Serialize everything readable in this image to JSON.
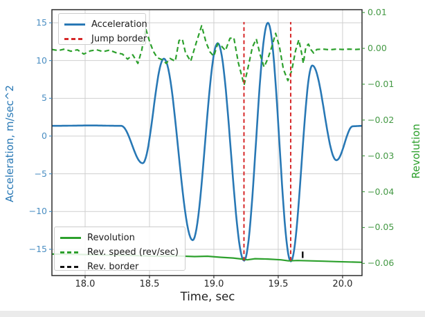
{
  "figure": {
    "background": "#ffffff",
    "window_strip_color": "#ebebeb"
  },
  "axes": {
    "x": {
      "label": "Time, sec",
      "min": 17.742,
      "max": 20.151,
      "ticks": [
        18.0,
        18.5,
        19.0,
        19.5,
        20.0
      ],
      "tick_labels": [
        "18.0",
        "18.5",
        "19.0",
        "19.5",
        "20.0"
      ],
      "tick_color": "#262626"
    },
    "y_left": {
      "label": "Acceleration, m/sec^2",
      "min": -18.48,
      "max": 16.74,
      "ticks": [
        15,
        10,
        5,
        0,
        -5,
        -10,
        -15
      ],
      "tick_labels": [
        "15",
        "10",
        "5",
        "0",
        "−5",
        "−10",
        "−15"
      ],
      "color": "#2878b5",
      "tick_color": "#4a8ec2"
    },
    "y_right": {
      "label": "Revolution",
      "min": -0.0634,
      "max": 0.0108,
      "ticks": [
        0.01,
        0.0,
        -0.01,
        -0.02,
        -0.03,
        -0.04,
        -0.05,
        -0.06
      ],
      "tick_labels": [
        "0.01",
        "0.00",
        "−0.01",
        "−0.02",
        "−0.03",
        "−0.04",
        "−0.05",
        "−0.06"
      ],
      "color": "#2ca02c",
      "tick_color": "#449944"
    },
    "grid": {
      "on": true,
      "color": "#cfcfcf"
    }
  },
  "legend_top": {
    "items": [
      {
        "label": "Acceleration",
        "color": "#2878b5",
        "style": "solid"
      },
      {
        "label": "Jump border",
        "color": "#d62728",
        "style": "dashed"
      }
    ]
  },
  "legend_bottom": {
    "items": [
      {
        "label": "Revolution",
        "color": "#2ca02c",
        "style": "solid"
      },
      {
        "label": "Rev. speed (rev/sec)",
        "color": "#2ca02c",
        "style": "dashed"
      },
      {
        "label": "Rev. border",
        "color": "#111111",
        "style": "dashed"
      }
    ]
  },
  "chart_data": {
    "type": "line",
    "xlabel": "Time, sec",
    "ylabel_left": "Acceleration, m/sec^2",
    "ylabel_right": "Revolution",
    "xlim": [
      17.742,
      20.151
    ],
    "ylim_left": [
      -18.48,
      16.74
    ],
    "ylim_right": [
      -0.0634,
      0.0108
    ],
    "series": [
      {
        "name": "Acceleration",
        "axis": "left",
        "kind": "smooth-line",
        "color": "#2878b5",
        "width": 2.6,
        "style": "solid",
        "points": [
          [
            17.742,
            1.35
          ],
          [
            18.05,
            1.4
          ],
          [
            18.28,
            1.35
          ],
          [
            18.447,
            -3.6
          ],
          [
            18.612,
            10.25
          ],
          [
            18.835,
            -13.8
          ],
          [
            19.03,
            12.3
          ],
          [
            19.235,
            -16.5
          ],
          [
            19.42,
            15.0
          ],
          [
            19.598,
            -16.6
          ],
          [
            19.765,
            9.35
          ],
          [
            19.952,
            -3.2
          ],
          [
            20.08,
            1.3
          ],
          [
            20.151,
            1.35
          ]
        ]
      },
      {
        "name": "Rev. speed (rev/sec)",
        "axis": "right",
        "kind": "line",
        "color": "#2ca02c",
        "width": 2.2,
        "style": "dashed",
        "points": [
          [
            17.742,
            -0.0003
          ],
          [
            17.79,
            -0.0006
          ],
          [
            17.84,
            -0.0002
          ],
          [
            17.89,
            -0.0008
          ],
          [
            17.94,
            -0.0004
          ],
          [
            17.99,
            -0.0016
          ],
          [
            18.04,
            -0.0007
          ],
          [
            18.09,
            -0.0004
          ],
          [
            18.14,
            -0.0009
          ],
          [
            18.19,
            -0.0005
          ],
          [
            18.24,
            -0.0012
          ],
          [
            18.29,
            -0.0016
          ],
          [
            18.33,
            -0.003
          ],
          [
            18.37,
            -0.0018
          ],
          [
            18.41,
            -0.0042
          ],
          [
            18.44,
            -0.0005
          ],
          [
            18.47,
            0.0056
          ],
          [
            18.5,
            0.002
          ],
          [
            18.53,
            -0.0008
          ],
          [
            18.56,
            -0.0026
          ],
          [
            18.6,
            -0.0032
          ],
          [
            18.63,
            -0.0042
          ],
          [
            18.66,
            -0.0028
          ],
          [
            18.7,
            -0.0036
          ],
          [
            18.73,
            0.0022
          ],
          [
            18.755,
            0.0026
          ],
          [
            18.78,
            -0.0012
          ],
          [
            18.82,
            -0.0036
          ],
          [
            18.86,
            0.0012
          ],
          [
            18.905,
            0.0063
          ],
          [
            18.94,
            0.0016
          ],
          [
            18.97,
            -0.001
          ],
          [
            19.0,
            -0.0022
          ],
          [
            19.03,
            0.0013
          ],
          [
            19.06,
            0.0006
          ],
          [
            19.09,
            -0.0006
          ],
          [
            19.125,
            0.0028
          ],
          [
            19.155,
            0.003
          ],
          [
            19.19,
            -0.004
          ],
          [
            19.235,
            -0.0102
          ],
          [
            19.27,
            -0.0046
          ],
          [
            19.3,
            0.0004
          ],
          [
            19.33,
            0.0026
          ],
          [
            19.36,
            -0.0018
          ],
          [
            19.39,
            -0.0052
          ],
          [
            19.42,
            -0.0028
          ],
          [
            19.45,
            0.0004
          ],
          [
            19.48,
            0.0042
          ],
          [
            19.51,
            0.0004
          ],
          [
            19.54,
            -0.0058
          ],
          [
            19.575,
            -0.009
          ],
          [
            19.605,
            -0.0062
          ],
          [
            19.635,
            -0.0006
          ],
          [
            19.66,
            0.0024
          ],
          [
            19.68,
            -0.001
          ],
          [
            19.695,
            -0.0042
          ],
          [
            19.715,
            0.0004
          ],
          [
            19.735,
            0.0012
          ],
          [
            19.755,
            -0.0004
          ],
          [
            19.775,
            -0.0013
          ],
          [
            19.8,
            -0.0003
          ],
          [
            19.85,
            -0.0002
          ],
          [
            19.9,
            -0.0004
          ],
          [
            19.95,
            -0.0002
          ],
          [
            20.0,
            -0.0003
          ],
          [
            20.05,
            -0.0002
          ],
          [
            20.1,
            -0.0003
          ],
          [
            20.151,
            -0.0002
          ]
        ]
      },
      {
        "name": "Revolution",
        "axis": "right",
        "kind": "line",
        "color": "#2ca02c",
        "width": 2.2,
        "style": "solid",
        "points": [
          [
            17.742,
            -0.0574
          ],
          [
            17.95,
            -0.0575
          ],
          [
            18.15,
            -0.0577
          ],
          [
            18.35,
            -0.0578
          ],
          [
            18.55,
            -0.058
          ],
          [
            18.7,
            -0.0579
          ],
          [
            18.85,
            -0.0581
          ],
          [
            18.95,
            -0.058
          ],
          [
            19.05,
            -0.0583
          ],
          [
            19.15,
            -0.0585
          ],
          [
            19.22,
            -0.0588
          ],
          [
            19.26,
            -0.059
          ],
          [
            19.32,
            -0.0587
          ],
          [
            19.42,
            -0.0588
          ],
          [
            19.52,
            -0.059
          ],
          [
            19.58,
            -0.0593
          ],
          [
            19.65,
            -0.0592
          ],
          [
            19.75,
            -0.0593
          ],
          [
            19.85,
            -0.0594
          ],
          [
            19.95,
            -0.0595
          ],
          [
            20.05,
            -0.0596
          ],
          [
            20.151,
            -0.0597
          ]
        ]
      },
      {
        "name": "Jump border",
        "axis": "left",
        "kind": "vlines",
        "color": "#d62728",
        "width": 2.0,
        "style": "dashed",
        "x_values": [
          19.234,
          19.597
        ],
        "y_span": [
          -16.5,
          15.1
        ]
      },
      {
        "name": "Rev. border",
        "axis": "right",
        "kind": "vlines",
        "color": "#111111",
        "width": 2.5,
        "style": "solid",
        "x_values": [
          19.69
        ],
        "y_span": [
          -0.0585,
          -0.0567
        ]
      }
    ]
  }
}
